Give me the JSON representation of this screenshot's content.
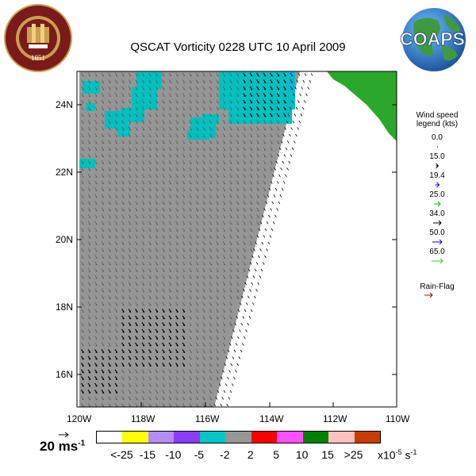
{
  "title": "QSCAT Vorticity 0228 UTC 10 April 2009",
  "logo_left": {
    "text": "FLORIDA STATE UNIVERSITY",
    "year": "1851"
  },
  "logo_right": {
    "text": "COAPS"
  },
  "axes": {
    "x_ticks": [
      "120W",
      "118W",
      "116W",
      "114W",
      "112W",
      "110W"
    ],
    "y_ticks": [
      "24N",
      "22N",
      "20N",
      "18N",
      "16N"
    ]
  },
  "wind_legend": {
    "title_line1": "Wind speed",
    "title_line2": "legend (kts)",
    "items": [
      {
        "label": "0.0",
        "color": "#000000"
      },
      {
        "label": "15.0",
        "color": "#000000"
      },
      {
        "label": "19.4",
        "color": "#0000ff"
      },
      {
        "label": "25.0",
        "color": "#00cc00"
      },
      {
        "label": "34.0",
        "color": "#000000"
      },
      {
        "label": "50.0",
        "color": "#0000ff"
      },
      {
        "label": "65.0",
        "color": "#33cc33"
      }
    ],
    "rain_flag": {
      "label": "Rain-Flag",
      "color": "#aa0000"
    }
  },
  "scale_vector": {
    "value": "20",
    "unit": "ms",
    "exp": "-1"
  },
  "colorbar": {
    "colors": [
      "#ffffff",
      "#ffff00",
      "#b48cff",
      "#8c3cff",
      "#00c8c8",
      "#969696",
      "#ff0000",
      "#ff50ff",
      "#008200",
      "#ffc0c0",
      "#c83c00"
    ],
    "labels": [
      "<-25",
      "-15",
      "-10",
      "-5",
      "-2",
      "2",
      "5",
      "10",
      "15",
      ">25"
    ],
    "unit_text": "x10",
    "unit_exp": "-5",
    "unit_s": "s",
    "unit_s_exp": "-1"
  },
  "colors": {
    "swath": "#969696",
    "cyan": "#00c0c0",
    "land": "#2ba82b",
    "pink": "#ffc0c0"
  }
}
